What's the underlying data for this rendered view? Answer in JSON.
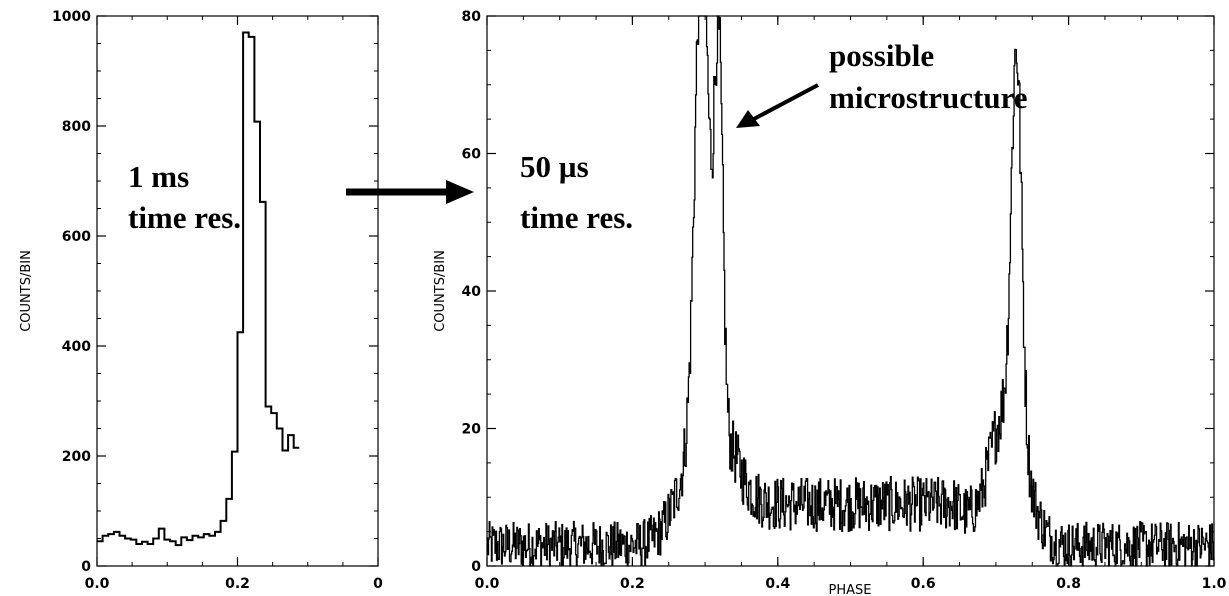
{
  "chart_data": [
    {
      "type": "line",
      "step": true,
      "xlim": [
        0.0,
        0.5
      ],
      "ylim": [
        0,
        1000
      ],
      "ylabel": "COUNTS/BIN",
      "xlabel": "",
      "x_ticks": [
        "0.0",
        "0.2",
        "0"
      ],
      "y_ticks": [
        "0",
        "200",
        "400",
        "600",
        "800",
        "1000"
      ],
      "annotation_lines": [
        "1 ms",
        "time res."
      ],
      "bin_width": 0.01,
      "values": [
        45,
        55,
        58,
        62,
        55,
        50,
        48,
        40,
        44,
        40,
        50,
        68,
        48,
        45,
        38,
        52,
        47,
        55,
        52,
        58,
        55,
        62,
        82,
        122,
        208,
        425,
        970,
        962,
        808,
        662,
        290,
        278,
        250,
        210,
        238,
        215
      ]
    },
    {
      "type": "line",
      "xlim": [
        0.0,
        1.0
      ],
      "ylim": [
        0,
        80
      ],
      "xlabel": "PHASE",
      "ylabel": "COUNTS/BIN",
      "x_ticks": [
        "0.0",
        "0.2",
        "0.4",
        "0.6",
        "0.8",
        "1.0"
      ],
      "y_ticks": [
        "0",
        "20",
        "40",
        "60",
        "80"
      ],
      "annotation_lines": [
        "50 µs",
        "time res."
      ],
      "callout_lines": [
        "possible",
        "microstructure"
      ],
      "components": {
        "baseline": 3,
        "bridge": {
          "start": 0.32,
          "end": 0.68,
          "level": 9
        },
        "peaks": [
          {
            "center": 0.295,
            "height": 72,
            "width": 0.009
          },
          {
            "center": 0.318,
            "height": 58,
            "width": 0.006
          },
          {
            "center": 0.3,
            "height": 18,
            "width": 0.03
          },
          {
            "center": 0.728,
            "height": 55,
            "width": 0.007
          },
          {
            "center": 0.715,
            "height": 20,
            "width": 0.025
          }
        ],
        "noise_amplitude": 4
      }
    }
  ]
}
